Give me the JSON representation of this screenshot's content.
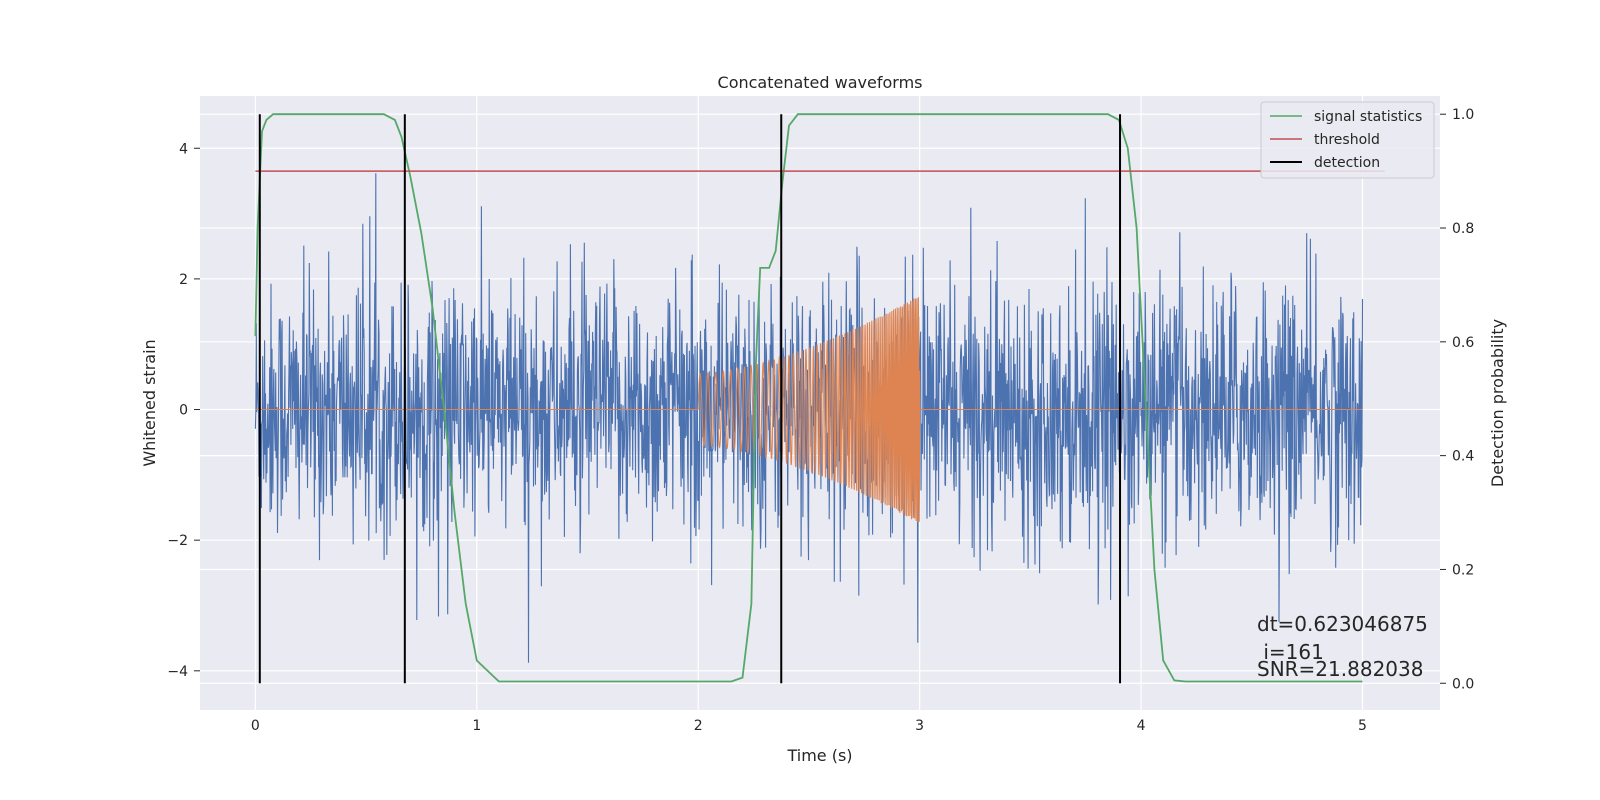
{
  "chart_data": {
    "type": "line",
    "title": "Concatenated waveforms",
    "xlabel": "Time (s)",
    "ylabel": "Whitened strain",
    "y2label": "Detection probability",
    "xlim": [
      -0.25,
      5.35
    ],
    "ylim": [
      -4.6,
      4.8
    ],
    "y2lim": [
      -0.047,
      1.032
    ],
    "xticks": [
      "0",
      "1",
      "2",
      "3",
      "4",
      "5"
    ],
    "yticks": [
      "−4",
      "−2",
      "0",
      "2",
      "4"
    ],
    "y2ticks": [
      "0.0",
      "0.2",
      "0.4",
      "0.6",
      "0.8",
      "1.0"
    ],
    "grid": true,
    "legend": {
      "position": "top-right"
    },
    "colors": {
      "strain": "#4c72b0",
      "waveform": "#dd8452",
      "signal_statistics": "#55a868",
      "threshold": "#c44e52",
      "detection": "#000000",
      "background": "#eaeaf2"
    },
    "series": [
      {
        "name": "signal statistics",
        "axis": "right",
        "x": [
          0,
          0.01,
          0.03,
          0.05,
          0.08,
          0.12,
          0.2,
          0.4,
          0.58,
          0.63,
          0.66,
          0.7,
          0.75,
          0.8,
          0.85,
          0.9,
          0.95,
          1.0,
          1.1,
          1.5,
          2.0,
          2.15,
          2.2,
          2.24,
          2.26,
          2.28,
          2.3,
          2.32,
          2.35,
          2.38,
          2.41,
          2.45,
          2.5,
          2.8,
          3.5,
          3.85,
          3.9,
          3.94,
          3.98,
          4.02,
          4.06,
          4.1,
          4.15,
          4.2,
          4.5,
          5.0
        ],
        "y": [
          0.61,
          0.8,
          0.97,
          0.99,
          1.0,
          1.0,
          1.0,
          1.0,
          1.0,
          0.99,
          0.96,
          0.89,
          0.79,
          0.66,
          0.49,
          0.3,
          0.14,
          0.04,
          0.003,
          0.003,
          0.003,
          0.003,
          0.01,
          0.14,
          0.56,
          0.73,
          0.73,
          0.73,
          0.76,
          0.88,
          0.98,
          1.0,
          1.0,
          1.0,
          1.0,
          1.0,
          0.99,
          0.94,
          0.8,
          0.5,
          0.2,
          0.04,
          0.005,
          0.003,
          0.003,
          0.003
        ]
      },
      {
        "name": "threshold",
        "axis": "right",
        "x": [
          0,
          5.1
        ],
        "y": [
          0.9,
          0.9
        ]
      },
      {
        "name": "detection",
        "axis": "right",
        "x": [
          0.02,
          0.675,
          2.375,
          3.905
        ],
        "y_range": [
          0,
          1
        ]
      }
    ],
    "annotations": [
      "dt=0.623046875",
      " i=161",
      "SNR=21.882038"
    ]
  }
}
